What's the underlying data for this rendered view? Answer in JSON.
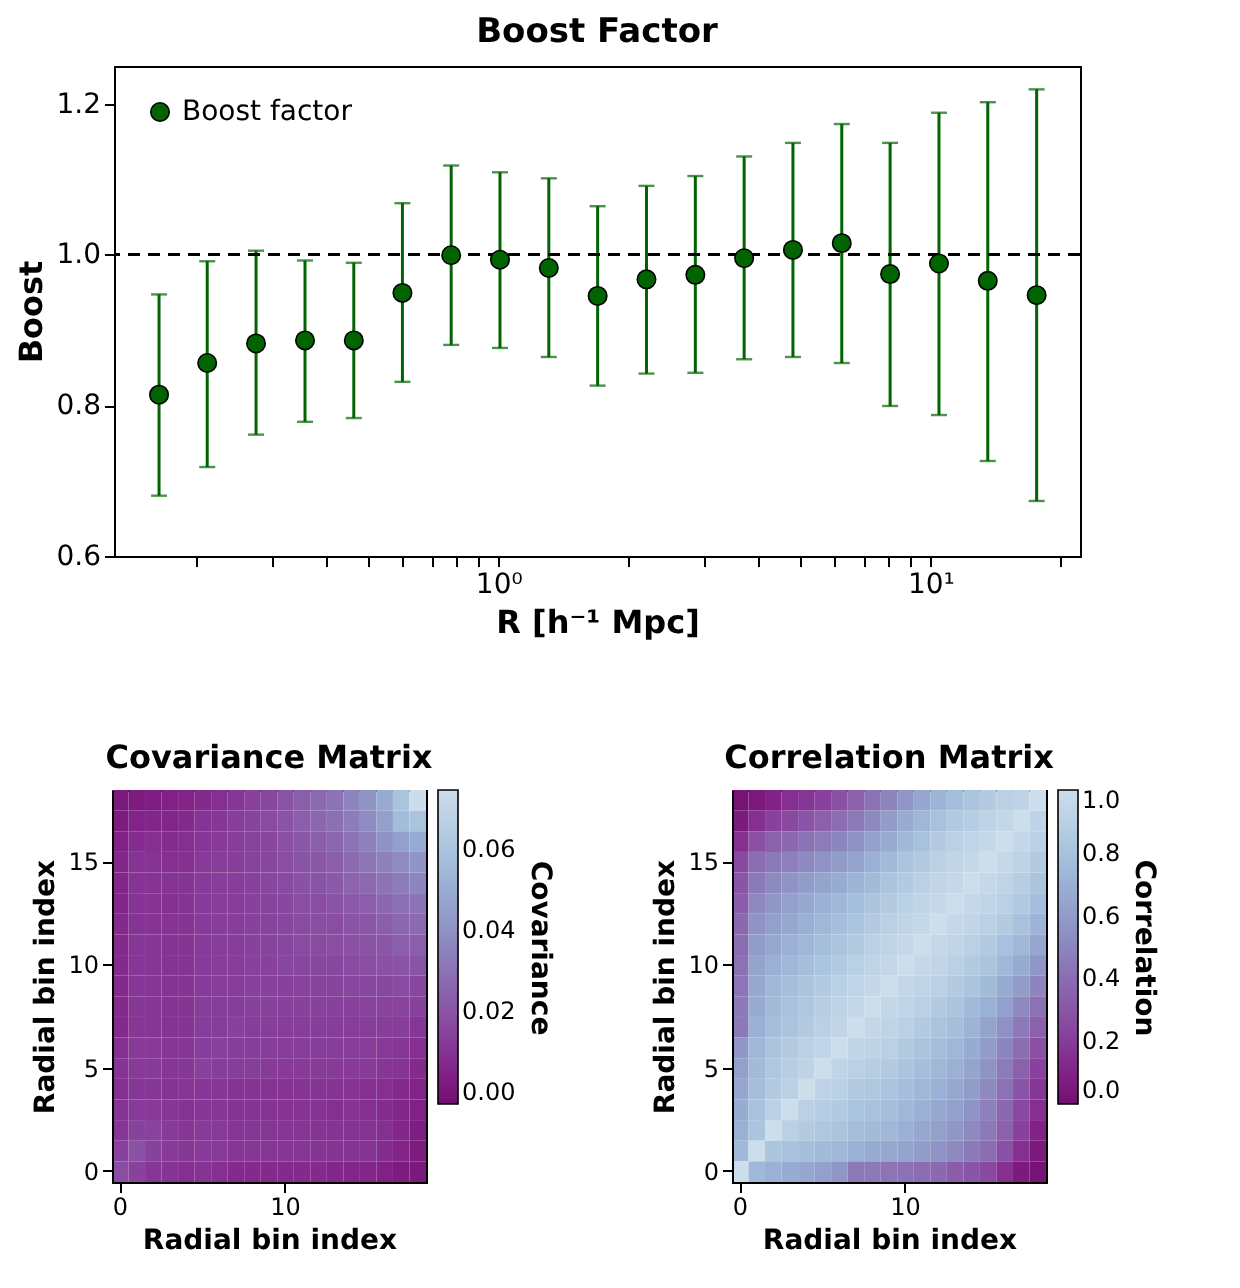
{
  "chart_data": [
    {
      "type": "scatter",
      "title": "Boost Factor",
      "xlabel": "R [h⁻¹ Mpc]",
      "ylabel": "Boost",
      "x": [
        0.164,
        0.212,
        0.275,
        0.357,
        0.463,
        0.6,
        0.778,
        1.009,
        1.309,
        1.698,
        2.203,
        2.858,
        3.707,
        4.808,
        6.237,
        8.07,
        10.47,
        13.58,
        17.62
      ],
      "series": [
        {
          "name": "Boost factor",
          "color": "#006400",
          "values": [
            0.814,
            0.856,
            0.882,
            0.886,
            0.886,
            0.949,
            0.999,
            0.993,
            0.982,
            0.945,
            0.967,
            0.973,
            0.995,
            1.006,
            1.015,
            0.974,
            0.988,
            0.965,
            0.946
          ],
          "errors": [
            [
              0.68,
              0.947
            ],
            [
              0.718,
              0.991
            ],
            [
              0.761,
              1.005
            ],
            [
              0.778,
              0.992
            ],
            [
              0.783,
              0.989
            ],
            [
              0.831,
              1.068
            ],
            [
              0.88,
              1.118
            ],
            [
              0.876,
              1.109
            ],
            [
              0.864,
              1.101
            ],
            [
              0.826,
              1.064
            ],
            [
              0.842,
              1.091
            ],
            [
              0.843,
              1.104
            ],
            [
              0.861,
              1.13
            ],
            [
              0.864,
              1.148
            ],
            [
              0.856,
              1.173
            ],
            [
              0.799,
              1.148
            ],
            [
              0.787,
              1.188
            ],
            [
              0.726,
              1.202
            ],
            [
              0.673,
              1.219
            ]
          ]
        }
      ],
      "log": "x",
      "xlim": [
        0.129,
        22.2
      ],
      "ylim": [
        0.6,
        1.25
      ],
      "xticks": [
        {
          "value": 0.2,
          "label": null
        },
        {
          "value": 0.3,
          "label": null
        },
        {
          "value": 0.4,
          "label": null
        },
        {
          "value": 0.5,
          "label": null
        },
        {
          "value": 0.6,
          "label": null
        },
        {
          "value": 0.7,
          "label": null
        },
        {
          "value": 0.8,
          "label": null
        },
        {
          "value": 0.9,
          "label": null
        },
        {
          "value": 1,
          "label": "10⁰"
        },
        {
          "value": 2,
          "label": null
        },
        {
          "value": 3,
          "label": null
        },
        {
          "value": 4,
          "label": null
        },
        {
          "value": 5,
          "label": null
        },
        {
          "value": 6,
          "label": null
        },
        {
          "value": 7,
          "label": null
        },
        {
          "value": 8,
          "label": null
        },
        {
          "value": 9,
          "label": null
        },
        {
          "value": 10,
          "label": "10¹"
        },
        {
          "value": 20,
          "label": null
        }
      ],
      "yticks": [
        {
          "value": 0.6,
          "label": "0.6"
        },
        {
          "value": 0.8,
          "label": "0.8"
        },
        {
          "value": 1,
          "label": "1.0"
        },
        {
          "value": 1.2,
          "label": "1.2"
        }
      ],
      "ref_lines": [
        {
          "axis": "y",
          "value": 1,
          "color": "#000000",
          "line_style": "dashed"
        }
      ],
      "legend": "top left",
      "marker": "circle"
    },
    {
      "type": "heatmap",
      "title": "Covariance Matrix",
      "xlabel": "Radial bin index",
      "ylabel": "Radial bin index",
      "clabel": "Covariance",
      "categories": [
        "0",
        null,
        null,
        null,
        null,
        null,
        null,
        null,
        null,
        null,
        "10",
        null,
        null,
        null,
        null,
        null,
        null,
        null,
        null
      ],
      "y_categories": [
        null,
        null,
        null,
        "15",
        null,
        null,
        null,
        null,
        "10",
        null,
        null,
        null,
        null,
        "5",
        null,
        null,
        null,
        null,
        "0"
      ],
      "cells": [
        [
          0.001,
          0.002,
          0.003,
          0.004,
          0.005,
          0.007,
          0.009,
          0.011,
          0.014,
          0.016,
          0.02,
          0.023,
          0.027,
          0.03,
          0.036,
          0.041,
          0.049,
          0.06,
          0.074
        ],
        [
          0.002,
          0.005,
          0.006,
          0.006,
          0.007,
          0.01,
          0.011,
          0.013,
          0.015,
          0.017,
          0.02,
          0.023,
          0.026,
          0.029,
          0.033,
          0.038,
          0.045,
          0.057,
          0.06
        ],
        [
          0.004,
          0.008,
          0.009,
          0.008,
          0.009,
          0.011,
          0.012,
          0.013,
          0.015,
          0.016,
          0.019,
          0.021,
          0.023,
          0.026,
          0.03,
          0.034,
          0.04,
          0.045,
          0.049
        ],
        [
          0.006,
          0.01,
          0.01,
          0.009,
          0.009,
          0.012,
          0.013,
          0.013,
          0.015,
          0.016,
          0.018,
          0.02,
          0.021,
          0.023,
          0.027,
          0.031,
          0.034,
          0.038,
          0.041
        ],
        [
          0.006,
          0.01,
          0.01,
          0.01,
          0.01,
          0.012,
          0.013,
          0.013,
          0.014,
          0.016,
          0.017,
          0.019,
          0.02,
          0.022,
          0.025,
          0.027,
          0.03,
          0.033,
          0.036
        ],
        [
          0.006,
          0.01,
          0.01,
          0.009,
          0.01,
          0.012,
          0.013,
          0.013,
          0.014,
          0.015,
          0.016,
          0.018,
          0.018,
          0.02,
          0.022,
          0.023,
          0.026,
          0.029,
          0.03
        ],
        [
          0.007,
          0.01,
          0.01,
          0.01,
          0.01,
          0.012,
          0.013,
          0.013,
          0.014,
          0.015,
          0.016,
          0.017,
          0.018,
          0.018,
          0.02,
          0.021,
          0.023,
          0.026,
          0.027
        ],
        [
          0.007,
          0.011,
          0.011,
          0.01,
          0.01,
          0.012,
          0.013,
          0.013,
          0.014,
          0.015,
          0.016,
          0.017,
          0.017,
          0.018,
          0.019,
          0.02,
          0.021,
          0.023,
          0.023
        ],
        [
          0.007,
          0.011,
          0.011,
          0.01,
          0.01,
          0.012,
          0.013,
          0.013,
          0.014,
          0.014,
          0.016,
          0.016,
          0.016,
          0.016,
          0.017,
          0.018,
          0.019,
          0.02,
          0.02
        ],
        [
          0.007,
          0.011,
          0.011,
          0.01,
          0.01,
          0.012,
          0.013,
          0.013,
          0.014,
          0.014,
          0.014,
          0.015,
          0.015,
          0.015,
          0.016,
          0.016,
          0.016,
          0.017,
          0.016
        ],
        [
          0.007,
          0.011,
          0.011,
          0.01,
          0.01,
          0.013,
          0.013,
          0.013,
          0.014,
          0.014,
          0.014,
          0.014,
          0.014,
          0.014,
          0.014,
          0.015,
          0.015,
          0.015,
          0.014
        ],
        [
          0.007,
          0.011,
          0.011,
          0.01,
          0.01,
          0.013,
          0.013,
          0.014,
          0.013,
          0.013,
          0.013,
          0.013,
          0.013,
          0.013,
          0.013,
          0.013,
          0.013,
          0.013,
          0.011
        ],
        [
          0.009,
          0.012,
          0.012,
          0.011,
          0.011,
          0.013,
          0.014,
          0.013,
          0.013,
          0.013,
          0.013,
          0.013,
          0.013,
          0.013,
          0.013,
          0.013,
          0.012,
          0.011,
          0.009
        ],
        [
          0.01,
          0.012,
          0.012,
          0.011,
          0.011,
          0.014,
          0.013,
          0.013,
          0.013,
          0.012,
          0.012,
          0.012,
          0.012,
          0.012,
          0.012,
          0.012,
          0.011,
          0.01,
          0.007
        ],
        [
          0.009,
          0.011,
          0.011,
          0.01,
          0.011,
          0.011,
          0.011,
          0.01,
          0.01,
          0.01,
          0.01,
          0.01,
          0.01,
          0.01,
          0.01,
          0.009,
          0.009,
          0.007,
          0.005
        ],
        [
          0.01,
          0.012,
          0.012,
          0.011,
          0.01,
          0.011,
          0.011,
          0.01,
          0.01,
          0.01,
          0.01,
          0.01,
          0.01,
          0.009,
          0.01,
          0.009,
          0.008,
          0.006,
          0.004
        ],
        [
          0.011,
          0.014,
          0.015,
          0.012,
          0.011,
          0.012,
          0.012,
          0.011,
          0.011,
          0.011,
          0.011,
          0.011,
          0.01,
          0.01,
          0.01,
          0.01,
          0.009,
          0.006,
          0.003
        ],
        [
          0.014,
          0.019,
          0.014,
          0.012,
          0.011,
          0.012,
          0.012,
          0.011,
          0.011,
          0.011,
          0.011,
          0.011,
          0.01,
          0.01,
          0.01,
          0.01,
          0.008,
          0.005,
          0.002
        ],
        [
          0.018,
          0.014,
          0.011,
          0.01,
          0.009,
          0.01,
          0.009,
          0.007,
          0.007,
          0.007,
          0.007,
          0.007,
          0.007,
          0.006,
          0.006,
          0.006,
          0.004,
          0.002,
          0.001
        ]
      ],
      "clim": [
        -0.003,
        0.0745
      ],
      "cticks": [
        {
          "value": 0,
          "label": "0.00"
        },
        {
          "value": 0.02,
          "label": "0.02"
        },
        {
          "value": 0.04,
          "label": "0.04"
        },
        {
          "value": 0.06,
          "label": "0.06"
        }
      ]
    },
    {
      "type": "heatmap",
      "title": "Correlation Matrix",
      "xlabel": "Radial bin index",
      "ylabel": "Radial bin index",
      "clabel": "Correlation",
      "categories": [
        "0",
        null,
        null,
        null,
        null,
        null,
        null,
        null,
        null,
        null,
        "10",
        null,
        null,
        null,
        null,
        null,
        null,
        null,
        null
      ],
      "y_categories": [
        null,
        null,
        null,
        "15",
        null,
        null,
        null,
        null,
        "10",
        null,
        null,
        null,
        null,
        "5",
        null,
        null,
        null,
        null,
        "0"
      ],
      "cells": [
        [
          0.02,
          0.05,
          0.1,
          0.15,
          0.18,
          0.22,
          0.28,
          0.35,
          0.42,
          0.5,
          0.58,
          0.65,
          0.72,
          0.78,
          0.82,
          0.86,
          0.9,
          0.92,
          1
        ],
        [
          0.06,
          0.15,
          0.22,
          0.25,
          0.3,
          0.35,
          0.4,
          0.45,
          0.52,
          0.6,
          0.68,
          0.74,
          0.8,
          0.85,
          0.88,
          0.92,
          0.95,
          1,
          0.92
        ],
        [
          0.15,
          0.28,
          0.35,
          0.38,
          0.42,
          0.46,
          0.5,
          0.55,
          0.62,
          0.68,
          0.75,
          0.8,
          0.86,
          0.9,
          0.93,
          0.96,
          1,
          0.95,
          0.9
        ],
        [
          0.25,
          0.4,
          0.45,
          0.48,
          0.52,
          0.56,
          0.6,
          0.64,
          0.7,
          0.76,
          0.82,
          0.86,
          0.9,
          0.94,
          0.96,
          1,
          0.96,
          0.92,
          0.86
        ],
        [
          0.3,
          0.45,
          0.52,
          0.56,
          0.6,
          0.64,
          0.68,
          0.72,
          0.76,
          0.82,
          0.86,
          0.9,
          0.94,
          0.96,
          1,
          0.96,
          0.93,
          0.88,
          0.82
        ],
        [
          0.33,
          0.52,
          0.58,
          0.62,
          0.66,
          0.7,
          0.74,
          0.78,
          0.82,
          0.86,
          0.9,
          0.94,
          0.96,
          1,
          0.96,
          0.94,
          0.9,
          0.85,
          0.78
        ],
        [
          0.38,
          0.56,
          0.62,
          0.66,
          0.7,
          0.74,
          0.78,
          0.82,
          0.86,
          0.9,
          0.94,
          0.96,
          1,
          0.96,
          0.94,
          0.9,
          0.86,
          0.8,
          0.72
        ],
        [
          0.4,
          0.6,
          0.66,
          0.7,
          0.74,
          0.78,
          0.82,
          0.86,
          0.9,
          0.93,
          0.96,
          1,
          0.96,
          0.94,
          0.9,
          0.86,
          0.8,
          0.74,
          0.65
        ],
        [
          0.42,
          0.64,
          0.7,
          0.74,
          0.78,
          0.82,
          0.86,
          0.9,
          0.93,
          0.95,
          1,
          0.96,
          0.94,
          0.9,
          0.86,
          0.82,
          0.75,
          0.68,
          0.58
        ],
        [
          0.43,
          0.66,
          0.74,
          0.78,
          0.82,
          0.86,
          0.9,
          0.93,
          0.95,
          1,
          0.95,
          0.93,
          0.9,
          0.86,
          0.82,
          0.76,
          0.68,
          0.6,
          0.5
        ],
        [
          0.45,
          0.68,
          0.76,
          0.8,
          0.84,
          0.88,
          0.92,
          0.95,
          1,
          0.95,
          0.93,
          0.9,
          0.86,
          0.82,
          0.76,
          0.7,
          0.62,
          0.52,
          0.42
        ],
        [
          0.45,
          0.7,
          0.78,
          0.82,
          0.86,
          0.9,
          0.94,
          1,
          0.95,
          0.93,
          0.9,
          0.86,
          0.82,
          0.78,
          0.72,
          0.64,
          0.55,
          0.45,
          0.35
        ],
        [
          0.58,
          0.74,
          0.82,
          0.86,
          0.9,
          0.93,
          1,
          0.94,
          0.92,
          0.9,
          0.86,
          0.82,
          0.78,
          0.74,
          0.68,
          0.6,
          0.5,
          0.4,
          0.28
        ],
        [
          0.62,
          0.76,
          0.84,
          0.88,
          0.92,
          1,
          0.93,
          0.9,
          0.88,
          0.86,
          0.82,
          0.78,
          0.74,
          0.7,
          0.64,
          0.56,
          0.46,
          0.35,
          0.22
        ],
        [
          0.65,
          0.78,
          0.86,
          0.9,
          1,
          0.92,
          0.9,
          0.86,
          0.84,
          0.82,
          0.78,
          0.74,
          0.7,
          0.66,
          0.6,
          0.52,
          0.42,
          0.3,
          0.18
        ],
        [
          0.68,
          0.8,
          0.9,
          1,
          0.9,
          0.88,
          0.86,
          0.82,
          0.8,
          0.78,
          0.74,
          0.7,
          0.66,
          0.62,
          0.56,
          0.48,
          0.38,
          0.25,
          0.15
        ],
        [
          0.7,
          0.82,
          1,
          0.9,
          0.86,
          0.84,
          0.82,
          0.78,
          0.76,
          0.74,
          0.7,
          0.66,
          0.62,
          0.58,
          0.52,
          0.45,
          0.35,
          0.22,
          0.1
        ],
        [
          0.75,
          1,
          0.82,
          0.8,
          0.78,
          0.76,
          0.74,
          0.7,
          0.68,
          0.66,
          0.64,
          0.6,
          0.56,
          0.52,
          0.45,
          0.4,
          0.28,
          0.15,
          0.05
        ],
        [
          1,
          0.75,
          0.7,
          0.68,
          0.65,
          0.62,
          0.58,
          0.45,
          0.45,
          0.43,
          0.42,
          0.4,
          0.38,
          0.33,
          0.3,
          0.25,
          0.15,
          0.06,
          0.02
        ]
      ],
      "clim": [
        0,
        1
      ],
      "cticks": [
        {
          "value": 0,
          "label": "0.0"
        },
        {
          "value": 0.2,
          "label": "0.2"
        },
        {
          "value": 0.4,
          "label": "0.4"
        },
        {
          "value": 0.6,
          "label": "0.6"
        },
        {
          "value": 0.8,
          "label": "0.8"
        },
        {
          "value": 1,
          "label": "1.0"
        }
      ]
    }
  ]
}
